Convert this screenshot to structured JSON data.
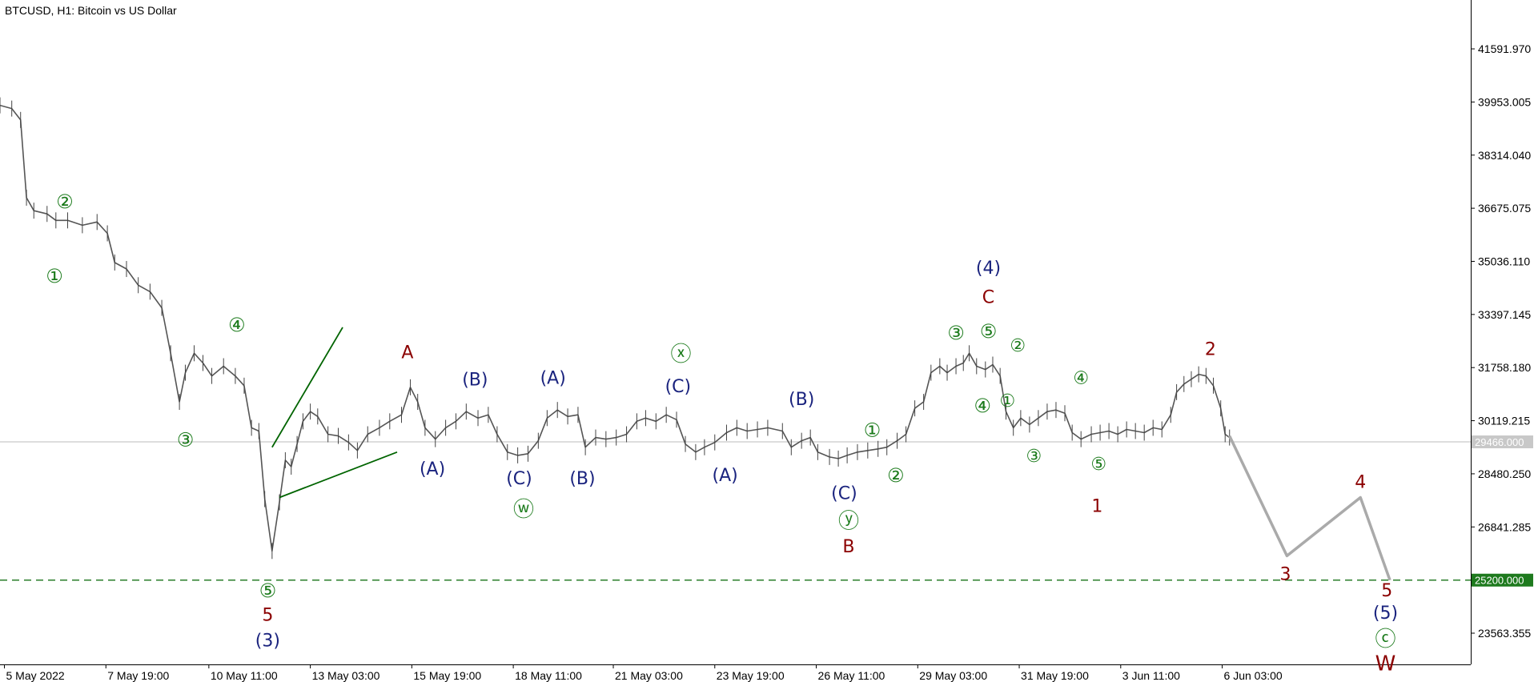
{
  "chart_data": {
    "type": "line",
    "title": "BTCUSD, H1:  Bitcoin vs US Dollar",
    "y_axis": {
      "ylim": [
        22600,
        43100
      ],
      "ticks": [
        "41591.970",
        "39953.005",
        "38314.040",
        "36675.075",
        "35036.110",
        "33397.145",
        "31758.180",
        "30119.215",
        "28480.250",
        "26841.285",
        "23563.355"
      ]
    },
    "x_axis": {
      "xlim": [
        0,
        100
      ],
      "ticks": [
        {
          "label": "5 May 2022",
          "x": 0.3
        },
        {
          "label": "7 May 19:00",
          "x": 7.2
        },
        {
          "label": "10 May 11:00",
          "x": 14.2
        },
        {
          "label": "13 May 03:00",
          "x": 21.1
        },
        {
          "label": "15 May 19:00",
          "x": 28.0
        },
        {
          "label": "18 May 11:00",
          "x": 34.9
        },
        {
          "label": "21 May 03:00",
          "x": 41.7
        },
        {
          "label": "23 May 19:00",
          "x": 48.6
        },
        {
          "label": "26 May 11:00",
          "x": 55.5
        },
        {
          "label": "29 May 03:00",
          "x": 62.4
        },
        {
          "label": "31 May 19:00",
          "x": 69.3
        },
        {
          "label": "3 Jun 11:00",
          "x": 76.2
        },
        {
          "label": "6 Jun 03:00",
          "x": 83.1
        }
      ]
    },
    "price_series": {
      "name": "",
      "color": "#000000",
      "points": [
        [
          0,
          39850
        ],
        [
          0.8,
          39750
        ],
        [
          1.4,
          39400
        ],
        [
          1.8,
          37000
        ],
        [
          2.3,
          36600
        ],
        [
          3.2,
          36500
        ],
        [
          3.8,
          36300
        ],
        [
          4.6,
          36300
        ],
        [
          5.6,
          36150
        ],
        [
          6.6,
          36250
        ],
        [
          7.3,
          35900
        ],
        [
          7.8,
          35000
        ],
        [
          8.6,
          34800
        ],
        [
          9.4,
          34300
        ],
        [
          10.2,
          34100
        ],
        [
          11.0,
          33600
        ],
        [
          11.6,
          32200
        ],
        [
          12.2,
          30700
        ],
        [
          12.6,
          31600
        ],
        [
          13.2,
          32200
        ],
        [
          13.8,
          31900
        ],
        [
          14.4,
          31500
        ],
        [
          15.2,
          31800
        ],
        [
          16.0,
          31500
        ],
        [
          16.6,
          31200
        ],
        [
          17.1,
          29900
        ],
        [
          17.6,
          29800
        ],
        [
          18.0,
          27700
        ],
        [
          18.5,
          26100
        ],
        [
          19.0,
          27600
        ],
        [
          19.4,
          28900
        ],
        [
          19.8,
          28700
        ],
        [
          20.2,
          29400
        ],
        [
          20.6,
          30100
        ],
        [
          21.1,
          30400
        ],
        [
          21.6,
          30250
        ],
        [
          22.3,
          29700
        ],
        [
          23.0,
          29650
        ],
        [
          23.7,
          29450
        ],
        [
          24.3,
          29200
        ],
        [
          25.0,
          29700
        ],
        [
          25.8,
          29900
        ],
        [
          26.5,
          30100
        ],
        [
          27.3,
          30300
        ],
        [
          27.9,
          31150
        ],
        [
          28.4,
          30700
        ],
        [
          28.9,
          29900
        ],
        [
          29.6,
          29550
        ],
        [
          30.3,
          29900
        ],
        [
          31.0,
          30100
        ],
        [
          31.7,
          30400
        ],
        [
          32.5,
          30200
        ],
        [
          33.2,
          30300
        ],
        [
          33.8,
          29700
        ],
        [
          34.5,
          29150
        ],
        [
          35.2,
          29050
        ],
        [
          35.9,
          29100
        ],
        [
          36.6,
          29500
        ],
        [
          37.2,
          30200
        ],
        [
          37.9,
          30450
        ],
        [
          38.6,
          30250
        ],
        [
          39.3,
          30300
        ],
        [
          39.8,
          29300
        ],
        [
          40.5,
          29600
        ],
        [
          41.2,
          29550
        ],
        [
          41.9,
          29600
        ],
        [
          42.6,
          29700
        ],
        [
          43.3,
          30100
        ],
        [
          43.9,
          30200
        ],
        [
          44.6,
          30100
        ],
        [
          45.3,
          30300
        ],
        [
          46.0,
          30150
        ],
        [
          46.6,
          29400
        ],
        [
          47.3,
          29150
        ],
        [
          47.9,
          29300
        ],
        [
          48.6,
          29450
        ],
        [
          49.4,
          29750
        ],
        [
          50.1,
          29900
        ],
        [
          50.8,
          29800
        ],
        [
          51.5,
          29850
        ],
        [
          52.2,
          29900
        ],
        [
          53.2,
          29800
        ],
        [
          53.8,
          29300
        ],
        [
          54.5,
          29500
        ],
        [
          55.1,
          29600
        ],
        [
          55.6,
          29150
        ],
        [
          56.4,
          29000
        ],
        [
          57.0,
          28950
        ],
        [
          57.6,
          29050
        ],
        [
          58.3,
          29150
        ],
        [
          59.0,
          29200
        ],
        [
          59.7,
          29250
        ],
        [
          60.3,
          29300
        ],
        [
          61.0,
          29500
        ],
        [
          61.6,
          29700
        ],
        [
          62.2,
          30500
        ],
        [
          62.8,
          30700
        ],
        [
          63.3,
          31600
        ],
        [
          63.9,
          31800
        ],
        [
          64.4,
          31600
        ],
        [
          65.0,
          31800
        ],
        [
          65.5,
          31900
        ],
        [
          65.9,
          32200
        ],
        [
          66.4,
          31800
        ],
        [
          67.0,
          31700
        ],
        [
          67.5,
          31850
        ],
        [
          68.0,
          31500
        ],
        [
          68.4,
          30400
        ],
        [
          68.9,
          29900
        ],
        [
          69.4,
          30200
        ],
        [
          70.0,
          30000
        ],
        [
          70.6,
          30200
        ],
        [
          71.2,
          30400
        ],
        [
          71.8,
          30450
        ],
        [
          72.4,
          30350
        ],
        [
          72.9,
          29750
        ],
        [
          73.5,
          29550
        ],
        [
          74.2,
          29700
        ],
        [
          74.8,
          29750
        ],
        [
          75.4,
          29800
        ],
        [
          76.0,
          29700
        ],
        [
          76.6,
          29850
        ],
        [
          77.2,
          29800
        ],
        [
          77.8,
          29750
        ],
        [
          78.4,
          29900
        ],
        [
          79.0,
          29850
        ],
        [
          79.6,
          30300
        ],
        [
          80.0,
          31000
        ],
        [
          80.5,
          31250
        ],
        [
          81.0,
          31400
        ],
        [
          81.5,
          31550
        ],
        [
          82.0,
          31500
        ],
        [
          82.5,
          31200
        ],
        [
          83.0,
          30500
        ],
        [
          83.3,
          29700
        ],
        [
          83.6,
          29600
        ]
      ]
    },
    "projection_series": {
      "name": "",
      "color": "#aaaaaa",
      "points": [
        [
          83.6,
          29650
        ],
        [
          87.5,
          25950
        ],
        [
          92.5,
          27750
        ],
        [
          94.5,
          25200
        ]
      ]
    },
    "triangle_lines": {
      "color": "#006400",
      "segments": [
        [
          [
            18.5,
            29300
          ],
          [
            23.3,
            33000
          ]
        ],
        [
          [
            19.0,
            27750
          ],
          [
            27.0,
            29150
          ]
        ]
      ]
    },
    "support_line": {
      "value": 25200,
      "label": "25200.000",
      "color": "#006400"
    },
    "current_price": {
      "value": 29466,
      "label": "29466.000",
      "color": "#bbbbbb"
    },
    "annotations": [
      {
        "text": "②",
        "x": 4.4,
        "y": 36850,
        "color": "#1a7a1a",
        "size": 24
      },
      {
        "text": "①",
        "x": 3.7,
        "y": 34550,
        "color": "#1a7a1a",
        "size": 24
      },
      {
        "text": "④",
        "x": 16.1,
        "y": 33050,
        "color": "#1a7a1a",
        "size": 24
      },
      {
        "text": "③",
        "x": 12.6,
        "y": 29500,
        "color": "#1a7a1a",
        "size": 24
      },
      {
        "text": "⑤",
        "x": 18.2,
        "y": 24850,
        "color": "#1a7a1a",
        "size": 24
      },
      {
        "text": "5",
        "x": 18.2,
        "y": 24100,
        "color": "#8b0000",
        "size": 22
      },
      {
        "text": "(3)",
        "x": 18.2,
        "y": 23300,
        "color": "#1a237e",
        "size": 22
      },
      {
        "text": "A",
        "x": 27.7,
        "y": 32200,
        "color": "#8b0000",
        "size": 22
      },
      {
        "text": "(B)",
        "x": 32.3,
        "y": 31350,
        "color": "#1a237e",
        "size": 22
      },
      {
        "text": "(A)",
        "x": 37.6,
        "y": 31400,
        "color": "#1a237e",
        "size": 22
      },
      {
        "text": "ⓧ",
        "x": 46.3,
        "y": 32150,
        "color": "#1a7a1a",
        "size": 26
      },
      {
        "text": "(C)",
        "x": 46.1,
        "y": 31150,
        "color": "#1a237e",
        "size": 22
      },
      {
        "text": "(A)",
        "x": 29.4,
        "y": 28600,
        "color": "#1a237e",
        "size": 22
      },
      {
        "text": "(C)",
        "x": 35.3,
        "y": 28300,
        "color": "#1a237e",
        "size": 22
      },
      {
        "text": "ⓦ",
        "x": 35.6,
        "y": 27350,
        "color": "#1a7a1a",
        "size": 26
      },
      {
        "text": "(B)",
        "x": 39.6,
        "y": 28300,
        "color": "#1a237e",
        "size": 22
      },
      {
        "text": "(A)",
        "x": 49.3,
        "y": 28400,
        "color": "#1a237e",
        "size": 22
      },
      {
        "text": "(B)",
        "x": 54.5,
        "y": 30750,
        "color": "#1a237e",
        "size": 22
      },
      {
        "text": "(C)",
        "x": 57.4,
        "y": 27850,
        "color": "#1a237e",
        "size": 22
      },
      {
        "text": "ⓨ",
        "x": 57.7,
        "y": 27000,
        "color": "#1a7a1a",
        "size": 26
      },
      {
        "text": "B",
        "x": 57.7,
        "y": 26200,
        "color": "#8b0000",
        "size": 22
      },
      {
        "text": "①",
        "x": 59.3,
        "y": 29800,
        "color": "#1a7a1a",
        "size": 24
      },
      {
        "text": "②",
        "x": 60.9,
        "y": 28400,
        "color": "#1a7a1a",
        "size": 24
      },
      {
        "text": "(4)",
        "x": 67.2,
        "y": 34800,
        "color": "#1a237e",
        "size": 22
      },
      {
        "text": "C",
        "x": 67.2,
        "y": 33900,
        "color": "#8b0000",
        "size": 22
      },
      {
        "text": "③",
        "x": 65.0,
        "y": 32800,
        "color": "#1a7a1a",
        "size": 24
      },
      {
        "text": "⑤",
        "x": 67.2,
        "y": 32850,
        "color": "#1a7a1a",
        "size": 24
      },
      {
        "text": "②",
        "x": 69.2,
        "y": 32400,
        "color": "#1a7a1a",
        "size": 22
      },
      {
        "text": "④",
        "x": 66.8,
        "y": 30550,
        "color": "#1a7a1a",
        "size": 24
      },
      {
        "text": "①",
        "x": 68.5,
        "y": 30700,
        "color": "#1a7a1a",
        "size": 22
      },
      {
        "text": "④",
        "x": 73.5,
        "y": 31400,
        "color": "#1a7a1a",
        "size": 22
      },
      {
        "text": "③",
        "x": 70.3,
        "y": 29000,
        "color": "#1a7a1a",
        "size": 22
      },
      {
        "text": "⑤",
        "x": 74.7,
        "y": 28750,
        "color": "#1a7a1a",
        "size": 22
      },
      {
        "text": "1",
        "x": 74.6,
        "y": 27450,
        "color": "#8b0000",
        "size": 22
      },
      {
        "text": "2",
        "x": 82.3,
        "y": 32300,
        "color": "#8b0000",
        "size": 22
      },
      {
        "text": "3",
        "x": 87.4,
        "y": 25350,
        "color": "#8b0000",
        "size": 22
      },
      {
        "text": "4",
        "x": 92.5,
        "y": 28200,
        "color": "#8b0000",
        "size": 22
      },
      {
        "text": "5",
        "x": 94.3,
        "y": 24850,
        "color": "#8b0000",
        "size": 22
      },
      {
        "text": "(5)",
        "x": 94.2,
        "y": 24150,
        "color": "#1a237e",
        "size": 22
      },
      {
        "text": "ⓒ",
        "x": 94.2,
        "y": 23350,
        "color": "#1a7a1a",
        "size": 26
      },
      {
        "text": "W",
        "x": 94.2,
        "y": 22600,
        "color": "#8b0000",
        "size": 26
      }
    ]
  }
}
